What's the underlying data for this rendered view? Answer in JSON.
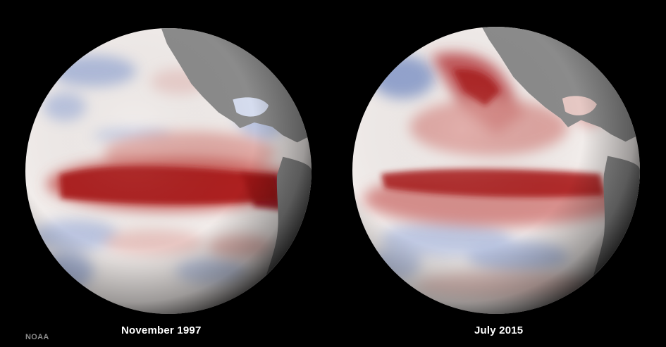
{
  "panels": [
    {
      "caption": "November 1997"
    },
    {
      "caption": "July 2015"
    }
  ],
  "credit": "NOAA",
  "colors": {
    "background": "#000000",
    "ocean_neutral": "#f1ecea",
    "warm_anomaly": "#a8161a",
    "cool_anomaly": "#7d93c8",
    "land": "#8b8b8b",
    "caption_text": "#ffffff",
    "credit_text": "#8a8a8a"
  }
}
